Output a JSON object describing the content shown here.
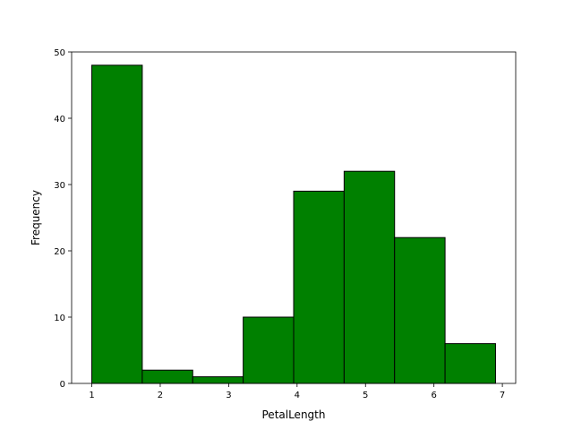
{
  "chart_data": {
    "type": "bar",
    "subtype": "histogram",
    "title": "",
    "xlabel": "PetalLength",
    "ylabel": "Frequency",
    "xlim": [
      0.705,
      7.195
    ],
    "ylim": [
      0,
      50
    ],
    "xticks": [
      1,
      2,
      3,
      4,
      5,
      6,
      7
    ],
    "yticks": [
      0,
      10,
      20,
      30,
      40,
      50
    ],
    "bin_edges": [
      1.0,
      1.7375,
      2.475,
      3.2125,
      3.95,
      4.6875,
      5.425,
      6.1625,
      6.9
    ],
    "values": [
      48,
      2,
      1,
      10,
      29,
      32,
      22,
      6
    ],
    "bar_color": "#008000",
    "edge_color": "#000000",
    "grid": false,
    "legend": "none"
  }
}
